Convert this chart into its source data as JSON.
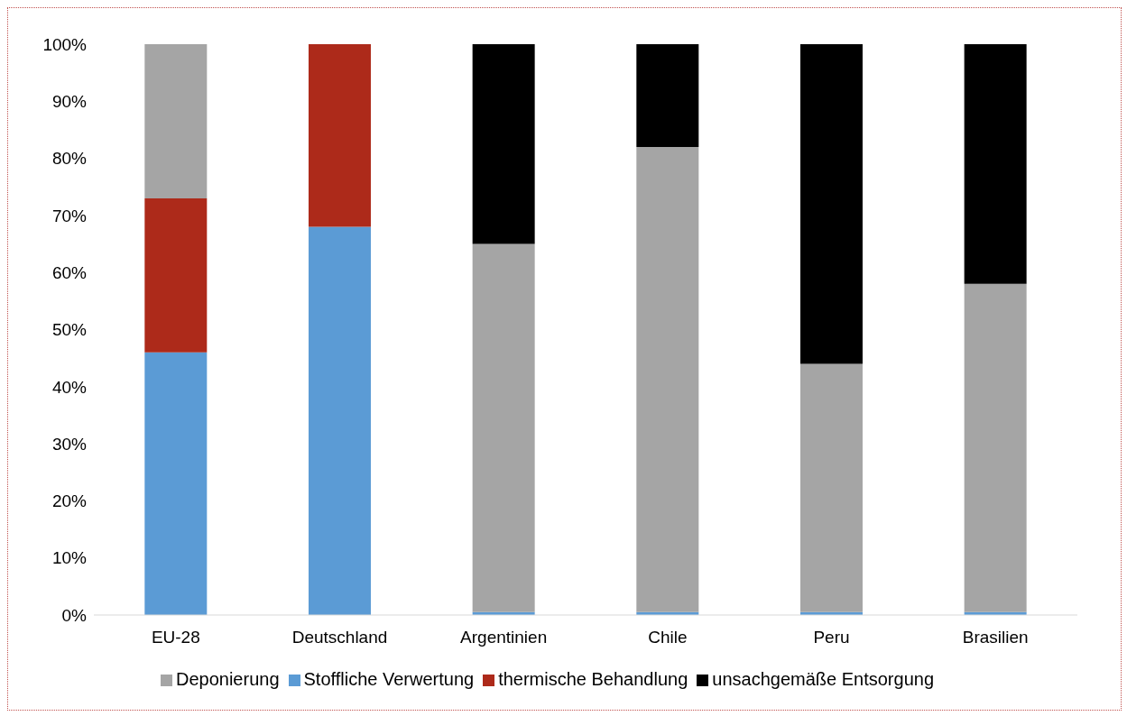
{
  "chart_data": {
    "type": "bar",
    "stacked": true,
    "categories": [
      "EU-28",
      "Deutschland",
      "Argentinien",
      "Chile",
      "Peru",
      "Brasilien"
    ],
    "series": [
      {
        "name": "Stoffliche Verwertung",
        "color": "#5b9bd5",
        "values": [
          46,
          68,
          0.5,
          0.5,
          0.5,
          0.5
        ]
      },
      {
        "name": "thermische Behandlung",
        "color": "#ad2a1a",
        "values": [
          27,
          32,
          0,
          0,
          0,
          0
        ]
      },
      {
        "name": "Deponierung",
        "color": "#a5a5a5",
        "values": [
          27,
          0,
          64.5,
          81.5,
          43.5,
          57.5
        ]
      },
      {
        "name": "unsachgemäße Entsorgung",
        "color": "#000000",
        "values": [
          0,
          0,
          35,
          18,
          56,
          42
        ]
      }
    ],
    "ylim": [
      0,
      100
    ],
    "yticks": [
      {
        "value": 0,
        "label": "0%"
      },
      {
        "value": 10,
        "label": "10%"
      },
      {
        "value": 20,
        "label": "20%"
      },
      {
        "value": 30,
        "label": "30%"
      },
      {
        "value": 40,
        "label": "40%"
      },
      {
        "value": 50,
        "label": "50%"
      },
      {
        "value": 60,
        "label": "60%"
      },
      {
        "value": 70,
        "label": "70%"
      },
      {
        "value": 80,
        "label": "80%"
      },
      {
        "value": 90,
        "label": "90%"
      },
      {
        "value": 100,
        "label": "100%"
      }
    ],
    "grid": false,
    "legend": "bottom"
  }
}
